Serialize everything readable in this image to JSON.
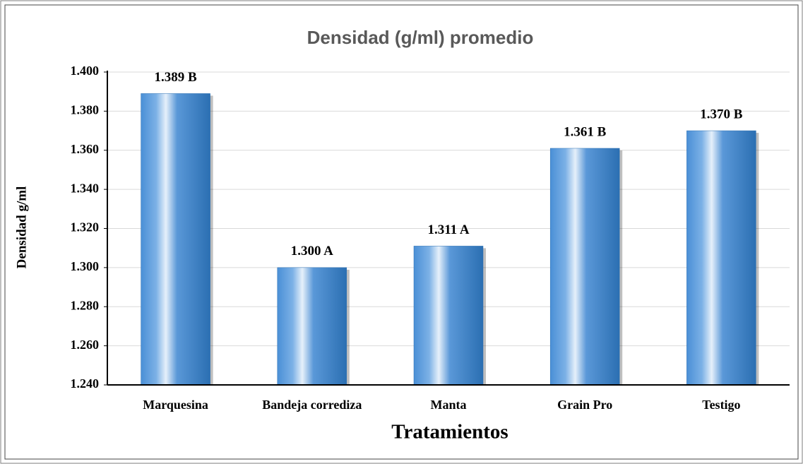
{
  "chart_data": {
    "type": "bar",
    "title": "Densidad (g/ml) promedio",
    "x_label": "Tratamientos",
    "y_label": "Densidad g/ml",
    "categories": [
      "Marquesina",
      "Bandeja corrediza",
      "Manta",
      "Grain Pro",
      "Testigo"
    ],
    "values": [
      1.389,
      1.3,
      1.311,
      1.361,
      1.37
    ],
    "value_labels": [
      "1.389 B",
      "1.300 A",
      "1.311 A",
      "1.361 B",
      "1.370 B"
    ],
    "color": "#3a7fc8",
    "ylim": [
      1.24,
      1.4
    ],
    "yticks": [
      {
        "value": 1.24,
        "label": "1.240"
      },
      {
        "value": 1.26,
        "label": "1.260"
      },
      {
        "value": 1.28,
        "label": "1.280"
      },
      {
        "value": 1.3,
        "label": "1.300"
      },
      {
        "value": 1.32,
        "label": "1.320"
      },
      {
        "value": 1.34,
        "label": "1.340"
      },
      {
        "value": 1.36,
        "label": "1.360"
      },
      {
        "value": 1.38,
        "label": "1.380"
      },
      {
        "value": 1.4,
        "label": "1.400"
      }
    ],
    "grid": true
  }
}
